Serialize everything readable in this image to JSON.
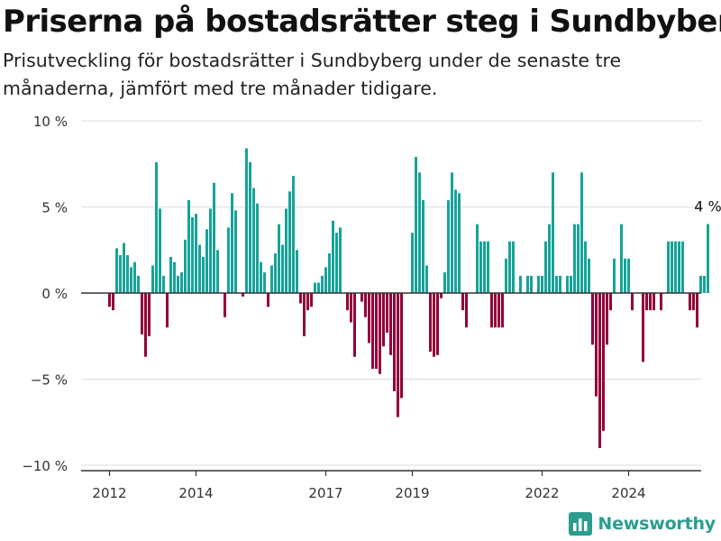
{
  "title": "Priserna på bostadsrätter steg i Sundbyberg",
  "subtitle": "Prisutveckling för bostadsrätter i Sundbyberg under de senaste tre månaderna, jämfört med tre månader tidigare.",
  "brand": {
    "name": "Newsworthy",
    "icon": "bar-chart-logo-icon"
  },
  "colors": {
    "positive": "#17a398",
    "negative": "#93003a",
    "grid": "#dddddd",
    "axis": "#333333",
    "brand": "#2a9d8f"
  },
  "chart_data": {
    "type": "bar",
    "x_start": "2012-01",
    "ylim": [
      -10,
      10
    ],
    "yticks": [
      10,
      5,
      0,
      -5,
      -10
    ],
    "ytick_labels": [
      "10 %",
      "5 %",
      "0 %",
      "−5 %",
      "−10 %"
    ],
    "xticks": [
      {
        "year": 2012,
        "label": "2012"
      },
      {
        "year": 2014,
        "label": "2014"
      },
      {
        "year": 2017,
        "label": "2017"
      },
      {
        "year": 2019,
        "label": "2019"
      },
      {
        "year": 2022,
        "label": "2022"
      },
      {
        "year": 2024,
        "label": "2024"
      }
    ],
    "last_value_label": "4 %",
    "grid": true,
    "values": [
      -0.8,
      -1.0,
      2.6,
      2.2,
      2.9,
      2.2,
      1.5,
      1.8,
      1.0,
      -2.4,
      -3.7,
      -2.5,
      1.6,
      7.6,
      4.9,
      1.0,
      -2.0,
      2.1,
      1.8,
      1.0,
      1.2,
      3.1,
      5.4,
      4.4,
      4.6,
      2.8,
      2.1,
      3.7,
      4.9,
      6.4,
      2.5,
      0.0,
      -1.4,
      3.8,
      5.8,
      4.8,
      0.0,
      -0.2,
      8.4,
      7.6,
      6.1,
      5.2,
      1.8,
      1.2,
      -0.8,
      1.6,
      2.3,
      4.0,
      2.8,
      4.9,
      5.9,
      6.8,
      2.5,
      -0.6,
      -2.5,
      -1.0,
      -0.8,
      0.6,
      0.6,
      1.0,
      1.5,
      2.3,
      4.2,
      3.5,
      3.8,
      0.0,
      -1.0,
      -1.7,
      -3.7,
      0.0,
      -0.5,
      -1.4,
      -2.9,
      -4.4,
      -4.4,
      -4.7,
      -3.1,
      -2.3,
      -3.6,
      -5.7,
      -7.2,
      -6.1,
      0.0,
      0.0,
      3.5,
      7.9,
      7.0,
      5.4,
      1.6,
      -3.4,
      -3.7,
      -3.6,
      -0.3,
      1.2,
      5.4,
      7.0,
      6.0,
      5.8,
      -1.0,
      -2.0,
      0.0,
      0.0,
      4.0,
      3.0,
      3.0,
      3.0,
      -2.0,
      -2.0,
      -2.0,
      -2.0,
      2.0,
      3.0,
      3.0,
      0.0,
      1.0,
      0.0,
      1.0,
      1.0,
      0.0,
      1.0,
      1.0,
      3.0,
      4.0,
      7.0,
      1.0,
      1.0,
      0.0,
      1.0,
      1.0,
      4.0,
      4.0,
      7.0,
      3.0,
      2.0,
      -3.0,
      -6.0,
      -9.0,
      -8.0,
      -3.0,
      -1.0,
      2.0,
      0.0,
      4.0,
      2.0,
      2.0,
      -1.0,
      0.0,
      0.0,
      -4.0,
      -1.0,
      -1.0,
      -1.0,
      0.0,
      -1.0,
      0.0,
      3.0,
      3.0,
      3.0,
      3.0,
      3.0,
      0.0,
      -1.0,
      -1.0,
      -2.0,
      1.0,
      1.0,
      4.0
    ]
  }
}
